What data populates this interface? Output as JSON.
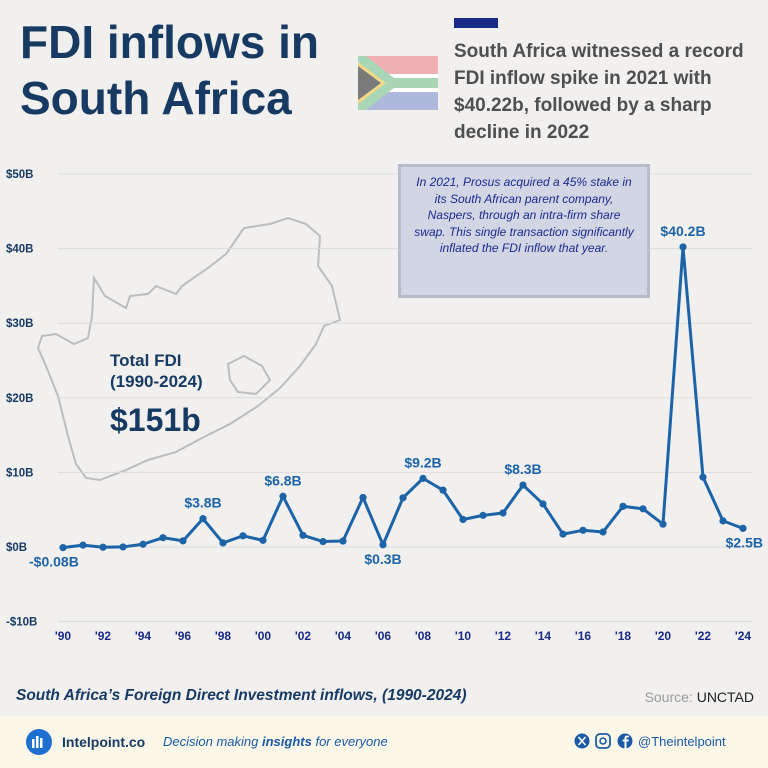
{
  "header": {
    "title": "FDI inflows in South Africa",
    "subtitle": "South Africa witnessed a record FDI inflow spike in 2021 with $40.22b, followed by a sharp decline in 2022"
  },
  "inset": {
    "total_label": "Total FDI (1990-2024)",
    "total_value": "$151b"
  },
  "annotation": "In 2021, Prosus acquired a 45% stake in its South African parent company, Naspers, through an intra-firm share swap. This single transaction significantly inflated the FDI inflow that year.",
  "chart_data": {
    "type": "line",
    "x": [
      1990,
      1991,
      1992,
      1993,
      1994,
      1995,
      1996,
      1997,
      1998,
      1999,
      2000,
      2001,
      2002,
      2003,
      2004,
      2005,
      2006,
      2007,
      2008,
      2009,
      2010,
      2011,
      2012,
      2013,
      2014,
      2015,
      2016,
      2017,
      2018,
      2019,
      2020,
      2021,
      2022,
      2023,
      2024
    ],
    "values": [
      -0.08,
      0.25,
      -0.03,
      0.01,
      0.37,
      1.25,
      0.82,
      3.8,
      0.55,
      1.5,
      0.89,
      6.8,
      1.57,
      0.73,
      0.8,
      6.64,
      0.3,
      6.59,
      9.2,
      7.62,
      3.69,
      4.24,
      4.56,
      8.3,
      5.77,
      1.73,
      2.24,
      2.01,
      5.45,
      5.12,
      3.06,
      40.22,
      9.36,
      3.5,
      2.5
    ],
    "series_color": "#1c63a8",
    "ylim": [
      -10,
      50
    ],
    "yticks": [
      -10,
      0,
      10,
      20,
      30,
      40,
      50
    ],
    "ytick_labels": [
      "-$10B",
      "$0B",
      "$10B",
      "$20B",
      "$30B",
      "$40B",
      "$50B"
    ],
    "xtick_years": [
      1990,
      1992,
      1994,
      1996,
      1998,
      2000,
      2002,
      2004,
      2006,
      2008,
      2010,
      2012,
      2014,
      2016,
      2018,
      2020,
      2022,
      2024
    ],
    "xtick_labels": [
      "'90",
      "'92",
      "'94",
      "'96",
      "'98",
      "'00",
      "'02",
      "'04",
      "'06",
      "'08",
      "'10",
      "'12",
      "'14",
      "'16",
      "'18",
      "'20",
      "'22",
      "'24"
    ],
    "grid": true,
    "data_labels": [
      {
        "year": 1990,
        "text": "-$0.08B",
        "pos": "below"
      },
      {
        "year": 1997,
        "text": "$3.8B",
        "pos": "above"
      },
      {
        "year": 2001,
        "text": "$6.8B",
        "pos": "above"
      },
      {
        "year": 2006,
        "text": "$0.3B",
        "pos": "below"
      },
      {
        "year": 2008,
        "text": "$9.2B",
        "pos": "above"
      },
      {
        "year": 2013,
        "text": "$8.3B",
        "pos": "above"
      },
      {
        "year": 2021,
        "text": "$40.2B",
        "pos": "above"
      },
      {
        "year": 2024,
        "text": "$2.5B",
        "pos": "below"
      }
    ]
  },
  "caption": "South Africa’s Foreign Direct Investment inflows, (1990-2024)",
  "source": {
    "label": "Source:",
    "name": "UNCTAD"
  },
  "footer": {
    "brand": "Intelpoint.co",
    "tagline_pre": "Decision making ",
    "tagline_bold": "insights",
    "tagline_post": " for everyone",
    "handle": "@Theintelpoint",
    "icons": [
      "x-icon",
      "instagram-icon",
      "facebook-icon"
    ]
  },
  "colors": {
    "title": "#173a63",
    "line": "#1c63a8",
    "accent": "#172a86",
    "footer_bg": "#fbf7e8"
  }
}
